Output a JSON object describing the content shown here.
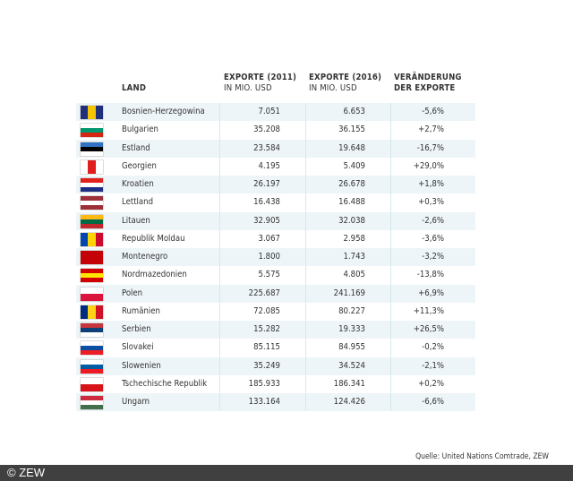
{
  "headers": {
    "land": "LAND",
    "exp2011": "EXPORTE (2011)",
    "exp2011_unit": "IN MIO. USD",
    "exp2016": "EXPORTE (2016)",
    "exp2016_unit": "IN MIO. USD",
    "change": "VERÄNDERUNG",
    "change2": "DER EXPORTE"
  },
  "rows": [
    {
      "land": "Bosnien-Herzegowina",
      "e2011": "7.051",
      "e2016": "6.653",
      "change": "-5,6%",
      "flag": {
        "dir": "v",
        "colors": [
          "#1f2f7a",
          "#f5c400",
          "#1f2f7a"
        ]
      }
    },
    {
      "land": "Bulgarien",
      "e2011": "35.208",
      "e2016": "36.155",
      "change": "+2,7%",
      "flag": {
        "dir": "h",
        "colors": [
          "#ffffff",
          "#00966e",
          "#d62612"
        ]
      }
    },
    {
      "land": "Estland",
      "e2011": "23.584",
      "e2016": "19.648",
      "change": "-16,7%",
      "flag": {
        "dir": "h",
        "colors": [
          "#2f73c2",
          "#000000",
          "#ffffff"
        ]
      }
    },
    {
      "land": "Georgien",
      "e2011": "4.195",
      "e2016": "5.409",
      "change": "+29,0%",
      "flag": {
        "dir": "v",
        "colors": [
          "#ffffff",
          "#e01e1e",
          "#ffffff"
        ]
      }
    },
    {
      "land": "Kroatien",
      "e2011": "26.197",
      "e2016": "26.678",
      "change": "+1,8%",
      "flag": {
        "dir": "h",
        "colors": [
          "#e0241b",
          "#ffffff",
          "#1c2f85"
        ]
      }
    },
    {
      "land": "Lettland",
      "e2011": "16.438",
      "e2016": "16.488",
      "change": "+0,3%",
      "flag": {
        "dir": "h",
        "colors": [
          "#9e3039",
          "#ffffff",
          "#9e3039"
        ]
      }
    },
    {
      "land": "Litauen",
      "e2011": "32.905",
      "e2016": "32.038",
      "change": "-2,6%",
      "flag": {
        "dir": "h",
        "colors": [
          "#fdb913",
          "#006a44",
          "#c1272d"
        ]
      }
    },
    {
      "land": "Republik Moldau",
      "e2011": "3.067",
      "e2016": "2.958",
      "change": "-3,6%",
      "flag": {
        "dir": "v",
        "colors": [
          "#0046ae",
          "#ffd200",
          "#cc092f"
        ]
      }
    },
    {
      "land": "Montenegro",
      "e2011": "1.800",
      "e2016": "1.743",
      "change": "-3,2%",
      "flag": {
        "dir": "h",
        "colors": [
          "#c40308"
        ]
      }
    },
    {
      "land": "Nordmazedonien",
      "e2011": "5.575",
      "e2016": "4.805",
      "change": "-13,8%",
      "flag": {
        "dir": "h",
        "colors": [
          "#d20000",
          "#ffe600",
          "#d20000"
        ]
      }
    },
    {
      "land": "Polen",
      "e2011": "225.687",
      "e2016": "241.169",
      "change": "+6,9%",
      "flag": {
        "dir": "h",
        "colors": [
          "#ffffff",
          "#dc143c"
        ]
      }
    },
    {
      "land": "Rumänien",
      "e2011": "72.085",
      "e2016": "80.227",
      "change": "+11,3%",
      "flag": {
        "dir": "v",
        "colors": [
          "#002b7f",
          "#fcd116",
          "#ce1126"
        ]
      }
    },
    {
      "land": "Serbien",
      "e2011": "15.282",
      "e2016": "19.333",
      "change": "+26,5%",
      "flag": {
        "dir": "h",
        "colors": [
          "#c6363c",
          "#0c4076",
          "#ffffff"
        ]
      }
    },
    {
      "land": "Slovakei",
      "e2011": "85.115",
      "e2016": "84.955",
      "change": "-0,2%",
      "flag": {
        "dir": "h",
        "colors": [
          "#ffffff",
          "#0b4ea2",
          "#ee1c25"
        ]
      }
    },
    {
      "land": "Slowenien",
      "e2011": "35.249",
      "e2016": "34.524",
      "change": "-2,1%",
      "flag": {
        "dir": "h",
        "colors": [
          "#ffffff",
          "#005da4",
          "#ed1c24"
        ]
      }
    },
    {
      "land": "Tschechische Republik",
      "e2011": "185.933",
      "e2016": "186.341",
      "change": "+0,2%",
      "flag": {
        "dir": "h",
        "colors": [
          "#ffffff",
          "#d7141a"
        ]
      }
    },
    {
      "land": "Ungarn",
      "e2011": "133.164",
      "e2016": "124.426",
      "change": "-6,6%",
      "flag": {
        "dir": "h",
        "colors": [
          "#cd2a3e",
          "#ffffff",
          "#436f4d"
        ]
      }
    }
  ],
  "source": "Quelle: United Nations Comtrade, ZEW",
  "footer": "© ZEW",
  "colors": {
    "row_alt": "#eef5f8",
    "footer_bg": "#404040"
  }
}
